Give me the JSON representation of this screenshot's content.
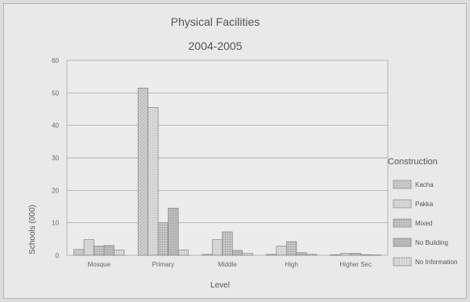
{
  "chart_data": {
    "type": "bar",
    "title": "Physical Facilities",
    "subtitle": "2004-2005",
    "xlabel": "Level",
    "ylabel": "Schools (000)",
    "ylim": [
      0,
      60
    ],
    "yticks": [
      0,
      10,
      20,
      30,
      40,
      50,
      60
    ],
    "grid": true,
    "legend_title": "Construction",
    "legend_position": "right",
    "categories": [
      "Mosque",
      "Primary",
      "Middle",
      "High",
      "Higher Sec"
    ],
    "series": [
      {
        "name": "Kacha",
        "values": [
          1.8,
          51.5,
          0.3,
          0.3,
          0.2
        ],
        "color": "#d2d2d2",
        "pattern": "kacha"
      },
      {
        "name": "Pakka",
        "values": [
          4.8,
          45.5,
          4.8,
          2.8,
          0.6
        ],
        "color": "#d6d6d6",
        "pattern": "pakka"
      },
      {
        "name": "Mixed",
        "values": [
          2.8,
          10.0,
          7.2,
          4.2,
          0.6
        ],
        "color": "#cdcdcd",
        "pattern": "mixed"
      },
      {
        "name": "No Building",
        "values": [
          3.0,
          14.5,
          1.5,
          0.8,
          0.2
        ],
        "color": "#c4c4c4",
        "pattern": "nobuilding"
      },
      {
        "name": "No Information",
        "values": [
          1.6,
          1.6,
          0.6,
          0.3,
          0.1
        ],
        "color": "#dadada",
        "pattern": "noinfo"
      }
    ]
  }
}
